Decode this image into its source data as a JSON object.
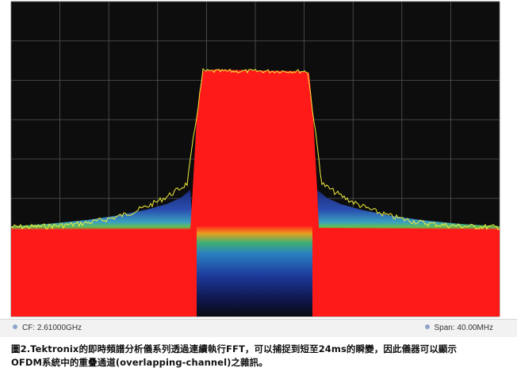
{
  "spectrum": {
    "colors": {
      "background": "#0d0d0d",
      "grid": "#555555",
      "density_high": "#ff1a1a",
      "trace": "#f2ee3a"
    }
  },
  "readouts": {
    "cf_label": "CF: 2.61000GHz",
    "span_label": "Span: 40.00MHz"
  },
  "caption": {
    "line1": "圖2.Tektronix的即時頻譜分析儀系列透過連續執行FFT，可以捕捉到短至24ms的瞬變，因此儀器可以顯示",
    "line2": "OFDM系統中的重疊通道(overlapping-channel)之雜訊。"
  }
}
